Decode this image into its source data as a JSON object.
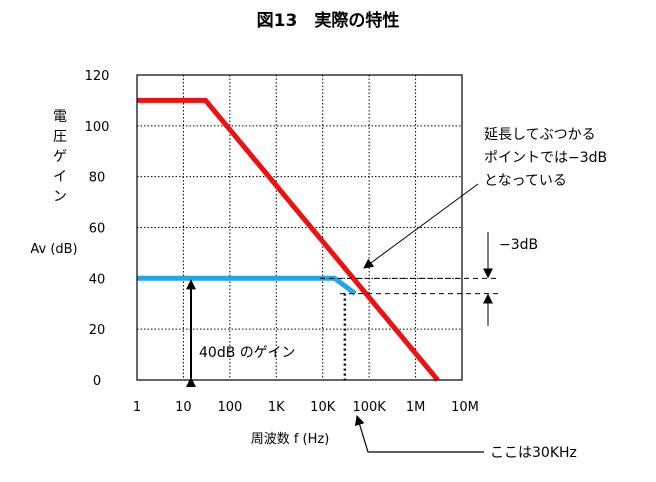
{
  "chart_data": {
    "type": "line",
    "title": "図13　実際の特性",
    "xlabel": "周波数  f (Hz)",
    "ylabel_chars": [
      "電",
      "圧",
      "ゲ",
      "イ",
      "ン"
    ],
    "ylabel_unit": "Av (dB)",
    "x_scale": "log",
    "xlim": [
      1,
      10000000
    ],
    "ylim": [
      0,
      120
    ],
    "grid": true,
    "x_ticks": [
      {
        "value": 1,
        "label": "1"
      },
      {
        "value": 10,
        "label": "10"
      },
      {
        "value": 100,
        "label": "100"
      },
      {
        "value": 1000,
        "label": "1K"
      },
      {
        "value": 10000,
        "label": "10K"
      },
      {
        "value": 100000,
        "label": "100K"
      },
      {
        "value": 1000000,
        "label": "1M"
      },
      {
        "value": 10000000,
        "label": "10M"
      }
    ],
    "y_ticks": [
      0,
      20,
      40,
      60,
      80,
      100,
      120
    ],
    "series": [
      {
        "color": "#ee1111",
        "points": [
          [
            1,
            110
          ],
          [
            30,
            110
          ],
          [
            3000000,
            0
          ]
        ]
      },
      {
        "color": "#22a6e6",
        "points": [
          [
            1,
            40
          ],
          [
            18000,
            40
          ],
          [
            50000,
            34
          ]
        ]
      }
    ],
    "annotations": {
      "gain_40db": "40dB のゲイン",
      "corner_freq": "ここは30KHz",
      "minus_3db": "−3dB",
      "note_lines": [
        "延長してぶつかる",
        "ポイントでは−3dB",
        "となっている"
      ],
      "corner_x": 30000,
      "ref_level": 40,
      "drop_level": 34
    }
  },
  "colors": {
    "axis": "#000000",
    "grid": "#000000"
  }
}
